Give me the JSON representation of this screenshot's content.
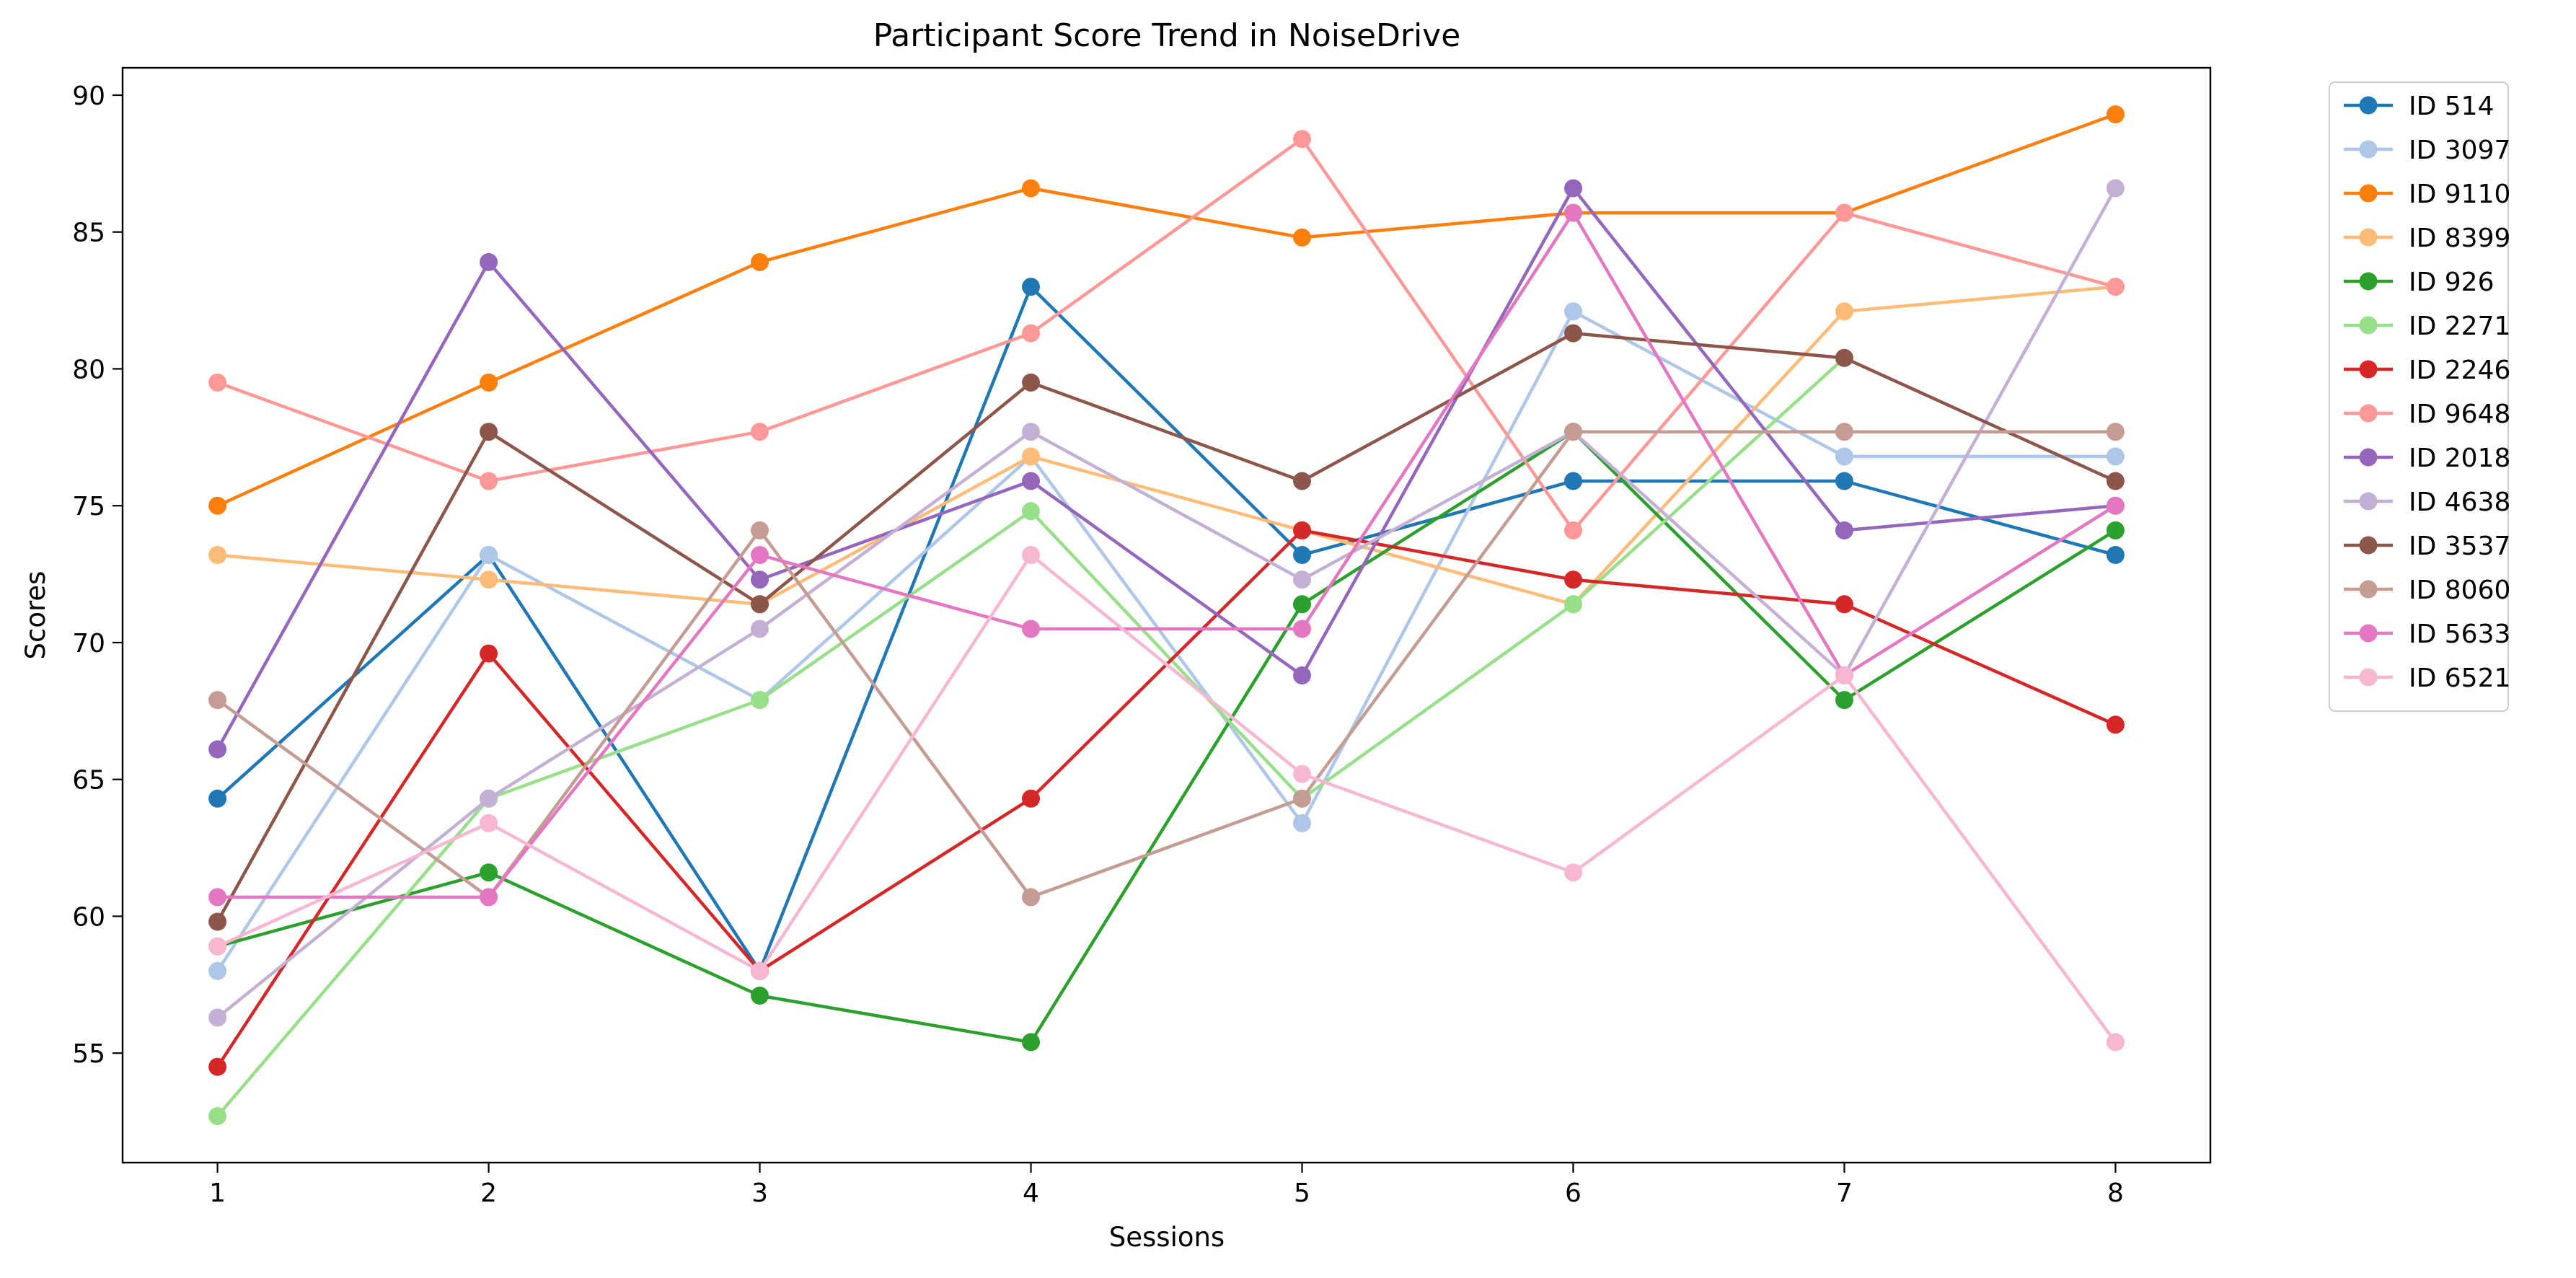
{
  "chart_data": {
    "type": "line",
    "title": "Participant Score Trend in NoiseDrive",
    "xlabel": "Sessions",
    "ylabel": "Scores",
    "x": [
      1,
      2,
      3,
      4,
      5,
      6,
      7,
      8
    ],
    "xlim": [
      0.65,
      8.35
    ],
    "ylim": [
      51.0,
      91.0
    ],
    "yticks": [
      55,
      60,
      65,
      70,
      75,
      80,
      85,
      90
    ],
    "grid": false,
    "legend_position": "outside-right-top",
    "series": [
      {
        "name": "ID 514",
        "color": "#1f77b4",
        "values": [
          64.3,
          73.2,
          58.0,
          83.0,
          73.2,
          75.9,
          75.9,
          73.2
        ]
      },
      {
        "name": "ID 3097",
        "color": "#aec7e8",
        "values": [
          58.0,
          73.2,
          67.9,
          76.8,
          63.4,
          82.1,
          76.8,
          76.8
        ]
      },
      {
        "name": "ID 9110",
        "color": "#ff7f0e",
        "values": [
          75.0,
          79.5,
          83.9,
          86.6,
          84.8,
          85.7,
          85.7,
          89.3
        ]
      },
      {
        "name": "ID 8399",
        "color": "#ffbb78",
        "values": [
          73.2,
          72.3,
          71.4,
          76.8,
          74.1,
          71.4,
          82.1,
          83.0
        ]
      },
      {
        "name": "ID 926",
        "color": "#2ca02c",
        "values": [
          58.9,
          61.6,
          57.1,
          55.4,
          71.4,
          77.7,
          67.9,
          74.1
        ]
      },
      {
        "name": "ID 2271",
        "color": "#98df8a",
        "values": [
          52.7,
          64.3,
          67.9,
          74.8,
          64.3,
          71.4,
          80.4,
          null
        ]
      },
      {
        "name": "ID 2246",
        "color": "#d62728",
        "values": [
          54.5,
          69.6,
          58.0,
          64.3,
          74.1,
          72.3,
          71.4,
          67.0
        ]
      },
      {
        "name": "ID 9648",
        "color": "#ff9896",
        "values": [
          79.5,
          75.9,
          77.7,
          81.3,
          88.4,
          74.1,
          85.7,
          83.0
        ]
      },
      {
        "name": "ID 2018",
        "color": "#9467bd",
        "values": [
          66.1,
          83.9,
          72.3,
          75.9,
          68.8,
          86.6,
          74.1,
          75.0
        ]
      },
      {
        "name": "ID 4638",
        "color": "#c5b0d5",
        "values": [
          56.3,
          64.3,
          70.5,
          77.7,
          72.3,
          77.7,
          68.8,
          86.6
        ]
      },
      {
        "name": "ID 3537",
        "color": "#8c564b",
        "values": [
          59.8,
          77.7,
          71.4,
          79.5,
          75.9,
          81.3,
          80.4,
          75.9
        ]
      },
      {
        "name": "ID 8060",
        "color": "#c49c94",
        "values": [
          67.9,
          60.7,
          74.1,
          60.7,
          64.3,
          77.7,
          77.7,
          77.7
        ]
      },
      {
        "name": "ID 5633",
        "color": "#e377c2",
        "values": [
          60.7,
          60.7,
          73.2,
          70.5,
          70.5,
          85.7,
          68.8,
          75.0
        ]
      },
      {
        "name": "ID 6521",
        "color": "#f7b6d2",
        "values": [
          58.9,
          63.4,
          58.0,
          73.2,
          65.2,
          61.6,
          68.8,
          55.4
        ]
      }
    ]
  }
}
